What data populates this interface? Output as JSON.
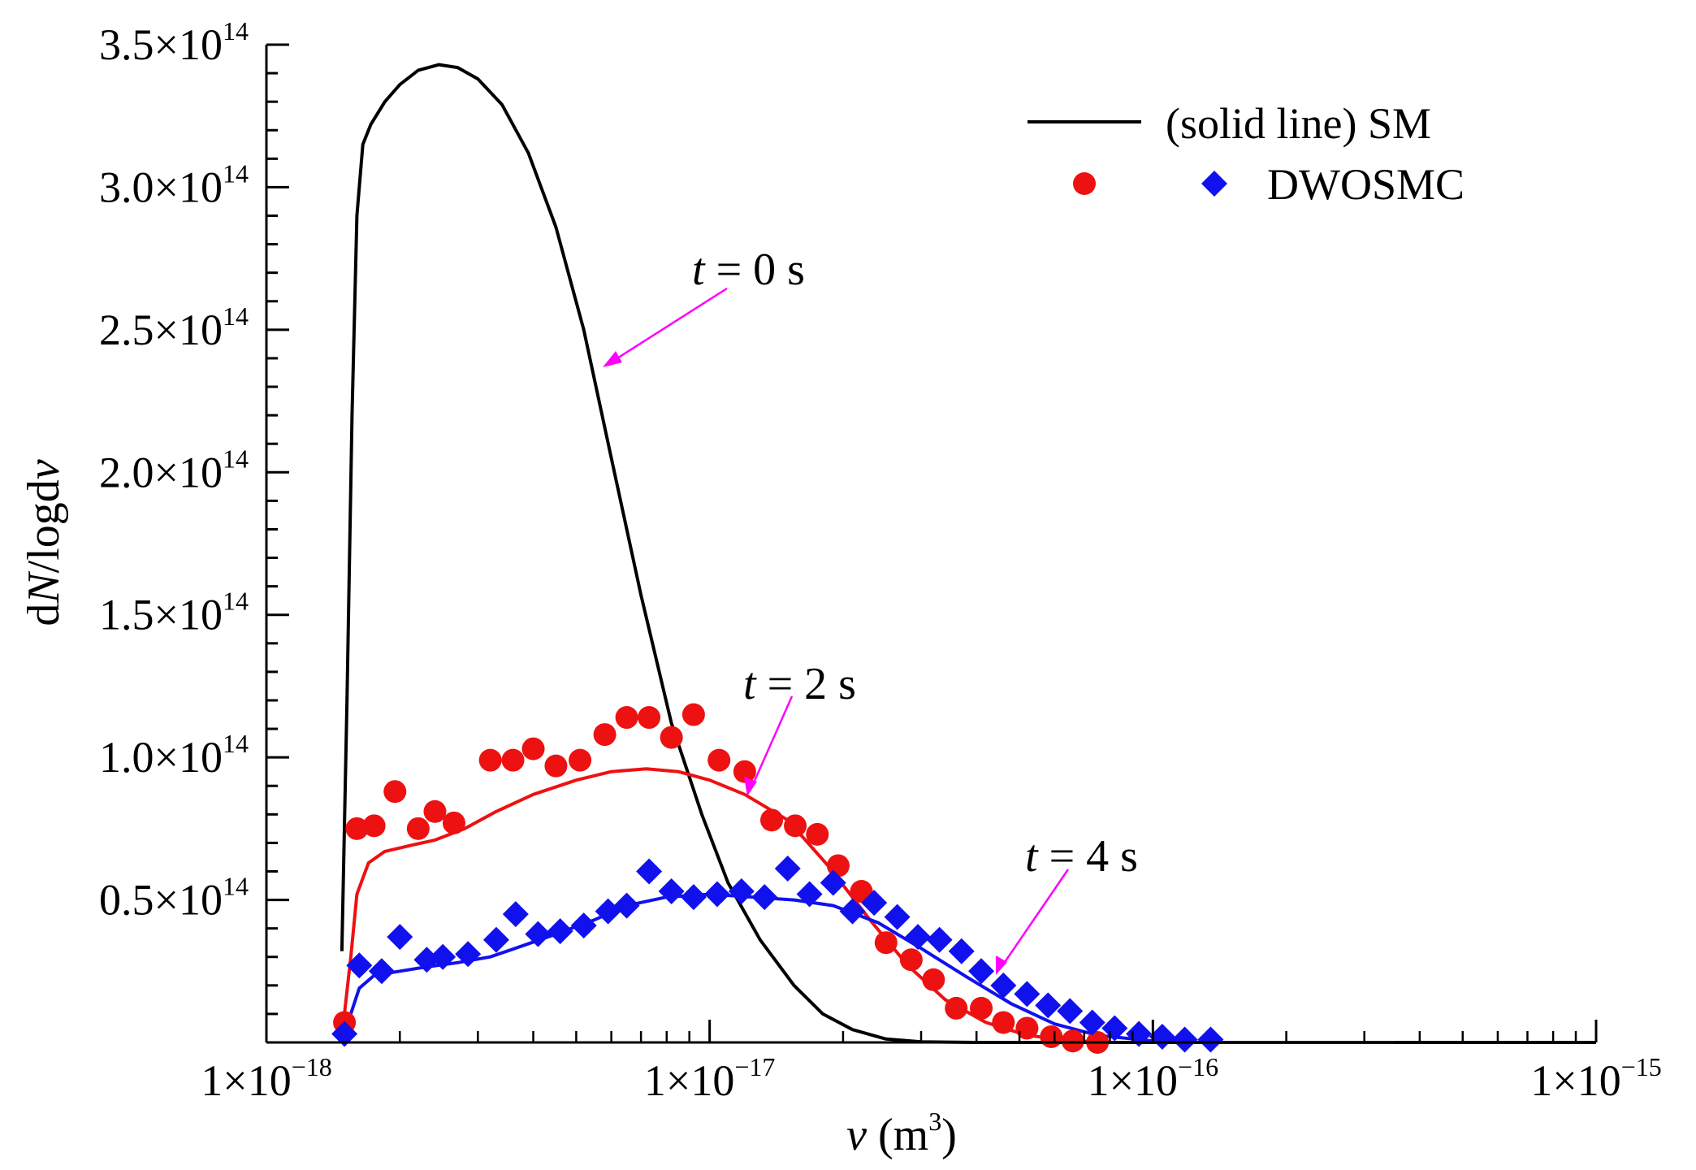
{
  "chart_data": {
    "type": "line+scatter",
    "title": "",
    "xlabel": {
      "var": "v",
      "unit_open": " (m",
      "unit_sup": "3",
      "unit_close": ")"
    },
    "ylabel": {
      "pre": "d",
      "var1": "N",
      "mid": "/logd",
      "var2": "v"
    },
    "xscale": "log",
    "xlim": [
      1e-18,
      1e-15
    ],
    "ylim": [
      0,
      350000000000000.0
    ],
    "x_ticks": [
      {
        "value": 1e-18,
        "base": "1×10",
        "exp": "−18"
      },
      {
        "value": 1e-17,
        "base": "1×10",
        "exp": "−17"
      },
      {
        "value": 1e-16,
        "base": "1×10",
        "exp": "−16"
      },
      {
        "value": 1e-15,
        "base": "1×10",
        "exp": "−15"
      }
    ],
    "y_ticks": [
      {
        "value": 50000000000000.0,
        "base": "0.5×10",
        "exp": "14"
      },
      {
        "value": 100000000000000.0,
        "base": "1.0×10",
        "exp": "14"
      },
      {
        "value": 150000000000000.0,
        "base": "1.5×10",
        "exp": "14"
      },
      {
        "value": 200000000000000.0,
        "base": "2.0×10",
        "exp": "14"
      },
      {
        "value": 250000000000000.0,
        "base": "2.5×10",
        "exp": "14"
      },
      {
        "value": 300000000000000.0,
        "base": "3.0×10",
        "exp": "14"
      },
      {
        "value": 350000000000000.0,
        "base": "3.5×10",
        "exp": "14"
      }
    ],
    "legend": {
      "position": "top-right",
      "line_label": "(solid line)  SM",
      "marker_label": "DWOSMC"
    },
    "series": [
      {
        "name": "SM t = 0 s",
        "kind": "line",
        "color": "#000000",
        "points": [
          [
            1.48e-18,
            32000000000000.0
          ],
          [
            1.52e-18,
            120000000000000.0
          ],
          [
            1.56e-18,
            220000000000000.0
          ],
          [
            1.6e-18,
            290000000000000.0
          ],
          [
            1.65e-18,
            315000000000000.0
          ],
          [
            1.72e-18,
            322000000000000.0
          ],
          [
            1.85e-18,
            330000000000000.0
          ],
          [
            2e-18,
            336000000000000.0
          ],
          [
            2.2e-18,
            341000000000000.0
          ],
          [
            2.45e-18,
            343000000000000.0
          ],
          [
            2.7e-18,
            342000000000000.0
          ],
          [
            3e-18,
            338000000000000.0
          ],
          [
            3.4e-18,
            329000000000000.0
          ],
          [
            3.9e-18,
            312000000000000.0
          ],
          [
            4.5e-18,
            286000000000000.0
          ],
          [
            5.2e-18,
            250000000000000.0
          ],
          [
            6e-18,
            205000000000000.0
          ],
          [
            7e-18,
            157000000000000.0
          ],
          [
            8.2e-18,
            112000000000000.0
          ],
          [
            9.6e-18,
            80000000000000.0
          ],
          [
            1.1e-17,
            56000000000000.0
          ],
          [
            1.3e-17,
            36000000000000.0
          ],
          [
            1.55e-17,
            20000000000000.0
          ],
          [
            1.8e-17,
            10000000000000.0
          ],
          [
            2.1e-17,
            4500000000000.0
          ],
          [
            2.5e-17,
            1200000000000.0
          ],
          [
            3e-17,
            200000000000.0
          ],
          [
            4e-17,
            0.0
          ],
          [
            1e-15,
            0.0
          ]
        ]
      },
      {
        "name": "SM t = 2 s",
        "kind": "line",
        "color": "#ee1111",
        "points": [
          [
            1.48e-18,
            2000000000000.0
          ],
          [
            1.55e-18,
            30000000000000.0
          ],
          [
            1.6e-18,
            52000000000000.0
          ],
          [
            1.7e-18,
            63000000000000.0
          ],
          [
            1.85e-18,
            67000000000000.0
          ],
          [
            2.1e-18,
            69000000000000.0
          ],
          [
            2.4e-18,
            71000000000000.0
          ],
          [
            2.8e-18,
            75000000000000.0
          ],
          [
            3.3e-18,
            81000000000000.0
          ],
          [
            4e-18,
            87000000000000.0
          ],
          [
            5e-18,
            92000000000000.0
          ],
          [
            6e-18,
            95000000000000.0
          ],
          [
            7.2e-18,
            96000000000000.0
          ],
          [
            8.5e-18,
            95000000000000.0
          ],
          [
            1e-17,
            92000000000000.0
          ],
          [
            1.2e-17,
            87000000000000.0
          ],
          [
            1.5e-17,
            78000000000000.0
          ],
          [
            1.85e-17,
            62000000000000.0
          ],
          [
            2.3e-17,
            43000000000000.0
          ],
          [
            2.8e-17,
            27000000000000.0
          ],
          [
            3.4e-17,
            15000000000000.0
          ],
          [
            4.2e-17,
            7000000000000.0
          ],
          [
            5.2e-17,
            2500000000000.0
          ],
          [
            6.5e-17,
            600000000000.0
          ],
          [
            8e-17,
            0.0
          ]
        ]
      },
      {
        "name": "SM t = 4 s",
        "kind": "line",
        "color": "#1111ee",
        "points": [
          [
            1.48e-18,
            0.0
          ],
          [
            1.55e-18,
            10000000000000.0
          ],
          [
            1.62e-18,
            19000000000000.0
          ],
          [
            1.75e-18,
            23500000000000.0
          ],
          [
            2e-18,
            25000000000000.0
          ],
          [
            2.3e-18,
            26500000000000.0
          ],
          [
            2.7e-18,
            28000000000000.0
          ],
          [
            3.2e-18,
            30000000000000.0
          ],
          [
            3.8e-18,
            34000000000000.0
          ],
          [
            4.5e-18,
            38000000000000.0
          ],
          [
            5.5e-18,
            43000000000000.0
          ],
          [
            6.5e-18,
            48000000000000.0
          ],
          [
            8e-18,
            51000000000000.0
          ],
          [
            1e-17,
            52000000000000.0
          ],
          [
            1.25e-17,
            51000000000000.0
          ],
          [
            1.55e-17,
            50000000000000.0
          ],
          [
            1.9e-17,
            48000000000000.0
          ],
          [
            2.4e-17,
            42000000000000.0
          ],
          [
            3e-17,
            33000000000000.0
          ],
          [
            3.8e-17,
            23000000000000.0
          ],
          [
            4.8e-17,
            13500000000000.0
          ],
          [
            6e-17,
            6500000000000.0
          ],
          [
            7.5e-17,
            2500000000000.0
          ],
          [
            1e-16,
            500000000000.0
          ],
          [
            1.3e-16,
            0.0
          ],
          [
            3.5e-16,
            -200000000000.0
          ]
        ]
      },
      {
        "name": "DWOSMC t = 2 s",
        "kind": "scatter",
        "marker": "circle",
        "color": "#ee1111",
        "points": [
          [
            1.5e-18,
            7000000000000.0
          ],
          [
            1.6e-18,
            75000000000000.0
          ],
          [
            1.75e-18,
            76000000000000.0
          ],
          [
            1.95e-18,
            88000000000000.0
          ],
          [
            2.2e-18,
            75000000000000.0
          ],
          [
            2.4e-18,
            81000000000000.0
          ],
          [
            2.65e-18,
            77000000000000.0
          ],
          [
            3.2e-18,
            99000000000000.0
          ],
          [
            3.6e-18,
            99000000000000.0
          ],
          [
            4e-18,
            103000000000000.0
          ],
          [
            4.5e-18,
            97000000000000.0
          ],
          [
            5.1e-18,
            99000000000000.0
          ],
          [
            5.8e-18,
            108000000000000.0
          ],
          [
            6.5e-18,
            114000000000000.0
          ],
          [
            7.3e-18,
            114000000000000.0
          ],
          [
            8.2e-18,
            107000000000000.0
          ],
          [
            9.2e-18,
            115000000000000.0
          ],
          [
            1.05e-17,
            99000000000000.0
          ],
          [
            1.2e-17,
            95000000000000.0
          ],
          [
            1.38e-17,
            78000000000000.0
          ],
          [
            1.56e-17,
            76000000000000.0
          ],
          [
            1.75e-17,
            73000000000000.0
          ],
          [
            1.95e-17,
            62000000000000.0
          ],
          [
            2.2e-17,
            53000000000000.0
          ],
          [
            2.5e-17,
            35000000000000.0
          ],
          [
            2.85e-17,
            29000000000000.0
          ],
          [
            3.2e-17,
            22000000000000.0
          ],
          [
            3.6e-17,
            12000000000000.0
          ],
          [
            4.1e-17,
            12000000000000.0
          ],
          [
            4.6e-17,
            7000000000000.0
          ],
          [
            5.2e-17,
            5000000000000.0
          ],
          [
            5.9e-17,
            2000000000000.0
          ],
          [
            6.6e-17,
            500000000000.0
          ],
          [
            7.5e-17,
            0.0
          ]
        ]
      },
      {
        "name": "DWOSMC t = 4 s",
        "kind": "scatter",
        "marker": "diamond",
        "color": "#1111ee",
        "points": [
          [
            1.5e-18,
            3000000000000.0
          ],
          [
            1.62e-18,
            27000000000000.0
          ],
          [
            1.82e-18,
            25000000000000.0
          ],
          [
            2e-18,
            37000000000000.0
          ],
          [
            2.3e-18,
            29000000000000.0
          ],
          [
            2.5e-18,
            30000000000000.0
          ],
          [
            2.85e-18,
            31000000000000.0
          ],
          [
            3.3e-18,
            36000000000000.0
          ],
          [
            3.65e-18,
            45000000000000.0
          ],
          [
            4.1e-18,
            38000000000000.0
          ],
          [
            4.6e-18,
            39000000000000.0
          ],
          [
            5.2e-18,
            41000000000000.0
          ],
          [
            5.9e-18,
            46000000000000.0
          ],
          [
            6.5e-18,
            48000000000000.0
          ],
          [
            7.3e-18,
            60000000000000.0
          ],
          [
            8.2e-18,
            53000000000000.0
          ],
          [
            9.2e-18,
            51000000000000.0
          ],
          [
            1.04e-17,
            52000000000000.0
          ],
          [
            1.18e-17,
            53000000000000.0
          ],
          [
            1.33e-17,
            51000000000000.0
          ],
          [
            1.5e-17,
            61000000000000.0
          ],
          [
            1.68e-17,
            52000000000000.0
          ],
          [
            1.9e-17,
            56000000000000.0
          ],
          [
            2.1e-17,
            46000000000000.0
          ],
          [
            2.35e-17,
            49000000000000.0
          ],
          [
            2.65e-17,
            44000000000000.0
          ],
          [
            2.95e-17,
            37000000000000.0
          ],
          [
            3.3e-17,
            36000000000000.0
          ],
          [
            3.7e-17,
            32000000000000.0
          ],
          [
            4.1e-17,
            25000000000000.0
          ],
          [
            4.6e-17,
            20000000000000.0
          ],
          [
            5.2e-17,
            17000000000000.0
          ],
          [
            5.8e-17,
            13000000000000.0
          ],
          [
            6.5e-17,
            11000000000000.0
          ],
          [
            7.3e-17,
            7000000000000.0
          ],
          [
            8.2e-17,
            5000000000000.0
          ],
          [
            9.3e-17,
            3000000000000.0
          ],
          [
            1.05e-16,
            2000000000000.0
          ],
          [
            1.18e-16,
            1000000000000.0
          ],
          [
            1.35e-16,
            1000000000000.0
          ]
        ]
      }
    ],
    "annotations": [
      {
        "var": "t",
        "text": " = 0 s",
        "color": "#ff00ff"
      },
      {
        "var": "t",
        "text": " = 2 s",
        "color": "#ff00ff"
      },
      {
        "var": "t",
        "text": " = 4 s",
        "color": "#ff00ff"
      }
    ]
  }
}
